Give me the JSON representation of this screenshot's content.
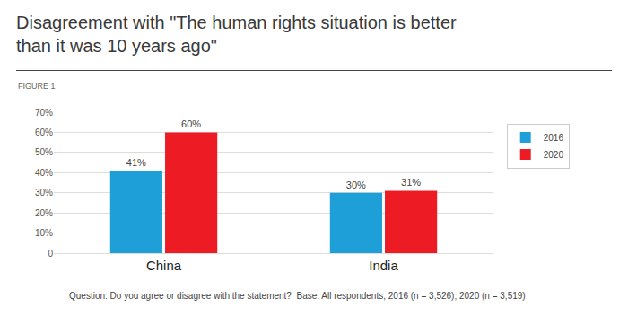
{
  "chart_data": {
    "type": "bar",
    "title": "Disagreement with \"The human rights situation is better than it was 10 years ago\"",
    "subtitle": "FIGURE 1",
    "annotations": [
      "Question: Do you agree or disagree with the statement?  Base: All respondents, 2016 (n = 3,526); 2020 (n = 3,519)"
    ],
    "categories": [
      "China",
      "India"
    ],
    "series": [
      {
        "name": "2016",
        "color": "#1e9fd8",
        "values": [
          41,
          30
        ],
        "value_labels": [
          "41%",
          "30%"
        ]
      },
      {
        "name": "2020",
        "color": "#ed1c24",
        "values": [
          60,
          31
        ],
        "value_labels": [
          "60%",
          "31%"
        ]
      }
    ],
    "ylim": [
      0,
      70
    ],
    "yticks": [
      0,
      {
        "value": 10,
        "label": "10%"
      },
      {
        "value": 20,
        "label": "20%"
      },
      {
        "value": 30,
        "label": "30%"
      },
      {
        "value": 40,
        "label": "40%"
      },
      {
        "value": 50,
        "label": "50%"
      },
      {
        "value": 60,
        "label": "60%"
      },
      {
        "value": 70,
        "label": "70%"
      }
    ],
    "grid": true,
    "legend": "right",
    "data_labels": true
  }
}
